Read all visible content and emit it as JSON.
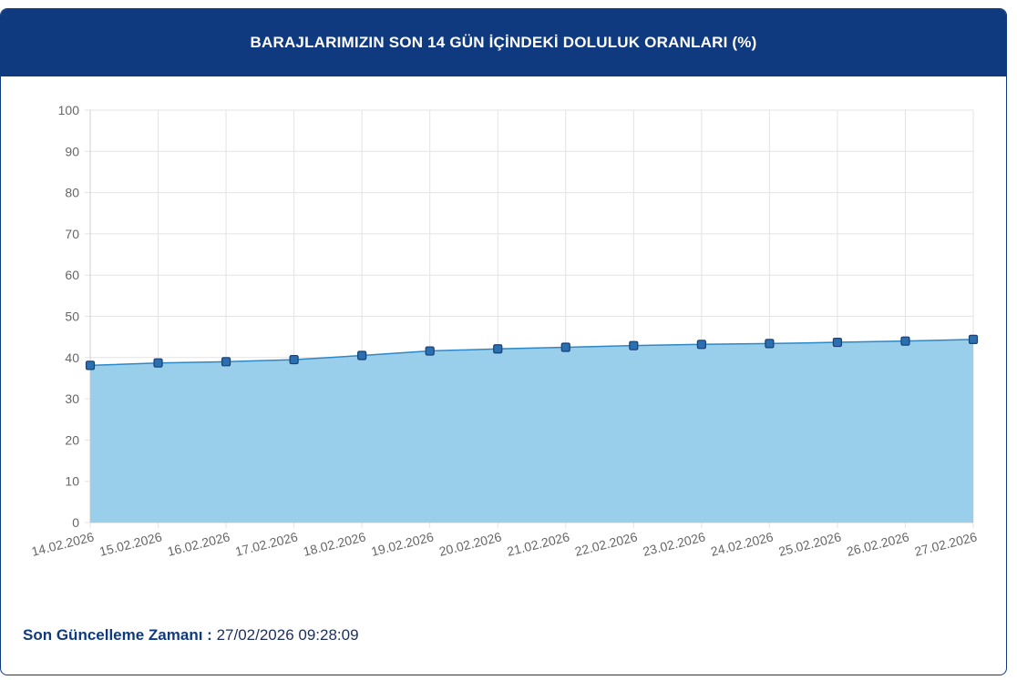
{
  "header": {
    "title": "BARAJLARIMIZIN SON 14 GÜN İÇİNDEKİ DOLULUK ORANLARI (%)"
  },
  "footer": {
    "label": "Son Güncelleme Zamanı :",
    "value": "27/02/2026 09:28:09"
  },
  "chart_data": {
    "type": "area",
    "title": "BARAJLARIMIZIN SON 14 GÜN İÇİNDEKİ DOLULUK ORANLARI (%)",
    "xlabel": "",
    "ylabel": "",
    "ylim": [
      0,
      100
    ],
    "yticks": [
      0,
      10,
      20,
      30,
      40,
      50,
      60,
      70,
      80,
      90,
      100
    ],
    "grid": true,
    "legend": "none",
    "categories": [
      "14.02.2026",
      "15.02.2026",
      "16.02.2026",
      "17.02.2026",
      "18.02.2026",
      "19.02.2026",
      "20.02.2026",
      "21.02.2026",
      "22.02.2026",
      "23.02.2026",
      "24.02.2026",
      "25.02.2026",
      "26.02.2026",
      "27.02.2026"
    ],
    "series": [
      {
        "values": [
          38.1,
          38.7,
          39.0,
          39.5,
          40.5,
          41.6,
          42.1,
          42.5,
          42.9,
          43.2,
          43.4,
          43.7,
          44.0,
          44.4
        ]
      }
    ],
    "colors": {
      "fill": "#99cfeb",
      "line": "#2f87c6",
      "marker": "#2a6fb0",
      "marker_border": "#1b3f73",
      "grid": "#e3e3e3",
      "axis_text": "#666666"
    }
  }
}
